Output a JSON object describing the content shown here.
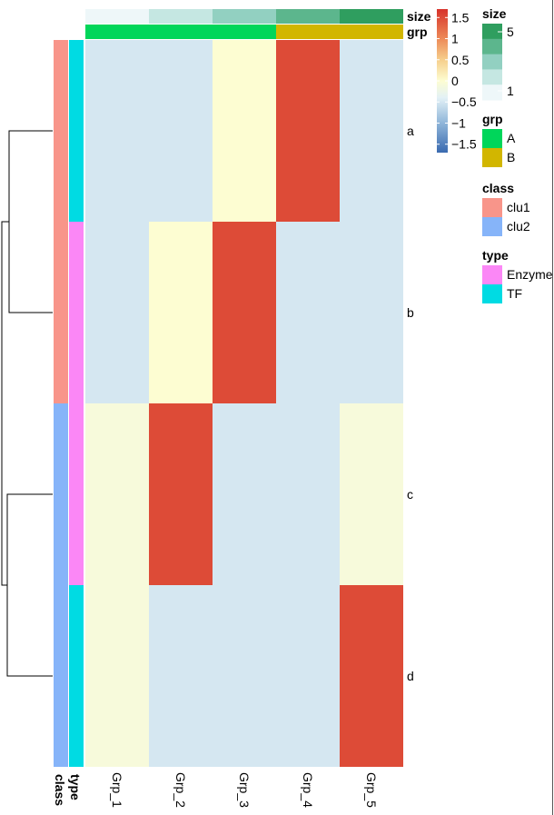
{
  "chart_data": {
    "type": "heatmap",
    "columns": [
      "Grp_1",
      "Grp_2",
      "Grp_3",
      "Grp_4",
      "Grp_5"
    ],
    "rows": [
      "a",
      "b",
      "c",
      "d"
    ],
    "values": [
      [
        -0.5,
        -0.5,
        0.0,
        1.5,
        -0.5
      ],
      [
        -0.5,
        0.0,
        1.5,
        -0.5,
        -0.5
      ],
      [
        -0.1,
        1.5,
        -0.5,
        -0.5,
        -0.1
      ],
      [
        -0.1,
        -0.5,
        -0.5,
        -0.5,
        1.5
      ]
    ],
    "colorbar": {
      "ticks": [
        "1.5",
        "1",
        "0.5",
        "0",
        "−0.5",
        "−1",
        "−1.5"
      ],
      "tick_values": [
        1.5,
        1,
        0.5,
        0,
        -0.5,
        -1,
        -1.5
      ],
      "range": [
        -1.7,
        1.7
      ],
      "stops": [
        {
          "v": -1.7,
          "c": "#3a6ab0"
        },
        {
          "v": -1.0,
          "c": "#8fb5d9"
        },
        {
          "v": -0.4,
          "c": "#e3f1f6"
        },
        {
          "v": 0.0,
          "c": "#fdfdd2"
        },
        {
          "v": 0.5,
          "c": "#f6cf8c"
        },
        {
          "v": 1.0,
          "c": "#ed8a58"
        },
        {
          "v": 1.7,
          "c": "#d7322a"
        }
      ]
    },
    "col_annotations": [
      {
        "name": "size",
        "values": [
          1,
          2,
          3,
          4,
          5
        ]
      },
      {
        "name": "grp",
        "values": [
          "A",
          "A",
          "A",
          "B",
          "B"
        ]
      }
    ],
    "row_annotations": [
      {
        "name": "class",
        "values": [
          "clu1",
          "clu1",
          "clu2",
          "clu2"
        ]
      },
      {
        "name": "type",
        "values": [
          "TF",
          "Enzyme",
          "Enzyme",
          "TF"
        ]
      }
    ],
    "dendrogram": {
      "merges": [
        [
          "a",
          "b"
        ],
        [
          "c",
          "d"
        ],
        [
          "ab",
          "cd"
        ]
      ]
    },
    "legends": [
      {
        "title": "size",
        "kind": "gradient",
        "labels": [
          "5",
          "1"
        ]
      },
      {
        "title": "grp",
        "kind": "discrete",
        "labels": [
          "A",
          "B"
        ]
      },
      {
        "title": "class",
        "kind": "discrete",
        "labels": [
          "clu1",
          "clu2"
        ]
      },
      {
        "title": "type",
        "kind": "discrete",
        "labels": [
          "Enzyme",
          "TF"
        ]
      }
    ],
    "colors": {
      "size": [
        "#eef7f9",
        "#c5e7e2",
        "#92d0c1",
        "#5cb68d",
        "#2f9e5f"
      ],
      "grp": {
        "A": "#00d65a",
        "B": "#d2b600"
      },
      "class": {
        "clu1": "#f8958a",
        "clu2": "#86b4f9"
      },
      "type": {
        "Enzyme": "#fb87f6",
        "TF": "#00dbe3"
      }
    }
  }
}
